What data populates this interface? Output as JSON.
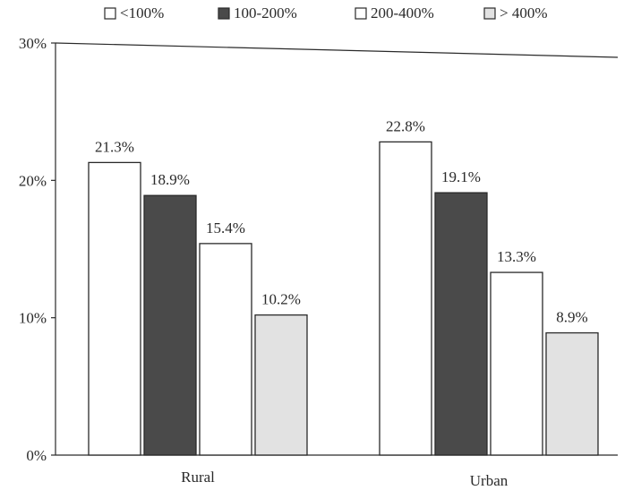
{
  "chart_data": {
    "type": "bar",
    "categories": [
      "Rural",
      "Urban"
    ],
    "series": [
      {
        "name": "<100%",
        "values": [
          21.3,
          22.8
        ],
        "color": "#ffffff",
        "stroke": "#2a2a2a"
      },
      {
        "name": "100-200%",
        "values": [
          18.9,
          19.1
        ],
        "color": "#4a4a4a",
        "stroke": "#2a2a2a"
      },
      {
        "name": "200-400%",
        "values": [
          15.4,
          13.3
        ],
        "color": "#ffffff",
        "stroke": "#2a2a2a"
      },
      {
        "name": "> 400%",
        "values": [
          10.2,
          8.9
        ],
        "color": "#e2e2e2",
        "stroke": "#2a2a2a"
      }
    ],
    "data_labels": [
      [
        "21.3%",
        "22.8%"
      ],
      [
        "18.9%",
        "19.1%"
      ],
      [
        "15.4%",
        "13.3%"
      ],
      [
        "10.2%",
        "8.9%"
      ]
    ],
    "y_ticks": [
      {
        "value": 0,
        "label": "0%"
      },
      {
        "value": 10,
        "label": "10%"
      },
      {
        "value": 20,
        "label": "20%"
      },
      {
        "value": 30,
        "label": "30%"
      }
    ],
    "ylim": [
      0,
      30
    ],
    "grid": false,
    "legend_position": "top",
    "title": "",
    "xlabel": "",
    "ylabel": ""
  }
}
